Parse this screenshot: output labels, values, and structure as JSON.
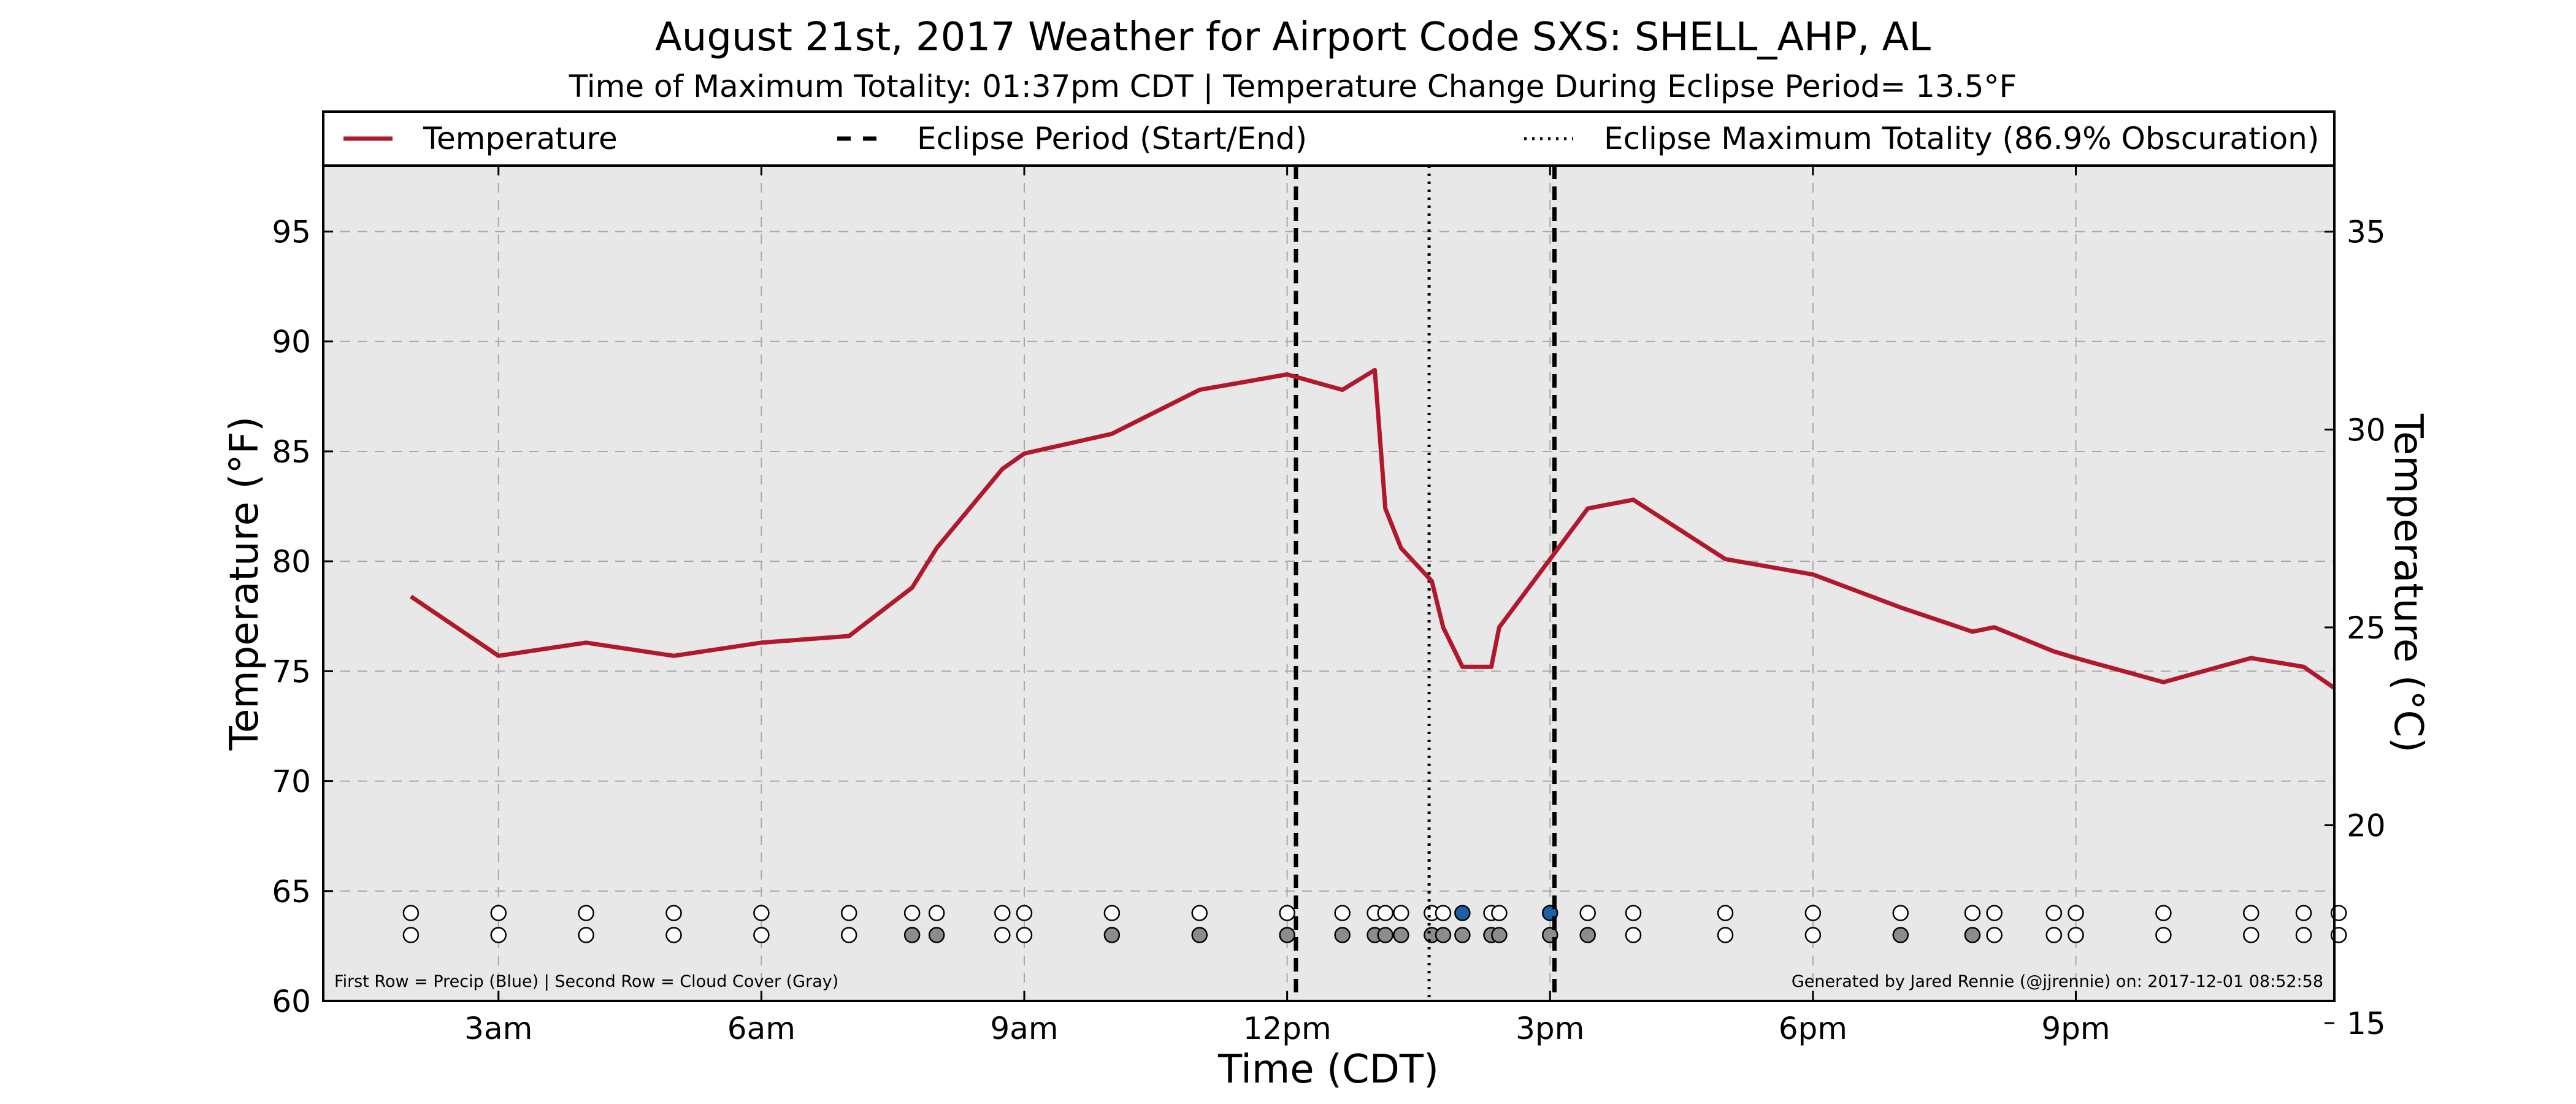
{
  "chart_data": {
    "type": "line",
    "title": "August 21st, 2017 Weather for Airport Code SXS: SHELL_AHP, AL",
    "subtitle": "Time of Maximum Totality: 01:37pm CDT | Temperature Change During Eclipse Period= 13.5°F",
    "xlabel": "Time (CDT)",
    "ylabel_left": "Temperature (°F)",
    "ylabel_right": "Temperature (°C)",
    "xlim": [
      1.0,
      23.95
    ],
    "ylim": [
      60,
      98
    ],
    "ylim_celsius": [
      15.56,
      36.67
    ],
    "grid": true,
    "legend_placement": "top",
    "x_ticks": [
      {
        "x": 3,
        "label": "3am"
      },
      {
        "x": 6,
        "label": "6am"
      },
      {
        "x": 9,
        "label": "9am"
      },
      {
        "x": 12,
        "label": "12pm"
      },
      {
        "x": 15,
        "label": "3pm"
      },
      {
        "x": 18,
        "label": "6pm"
      },
      {
        "x": 21,
        "label": "9pm"
      }
    ],
    "y_ticks": [
      {
        "y": 60,
        "label": "60"
      },
      {
        "y": 65,
        "label": "65"
      },
      {
        "y": 70,
        "label": "70"
      },
      {
        "y": 75,
        "label": "75"
      },
      {
        "y": 80,
        "label": "80"
      },
      {
        "y": 85,
        "label": "85"
      },
      {
        "y": 90,
        "label": "90"
      },
      {
        "y": 95,
        "label": "95"
      }
    ],
    "y_ticks_right": [
      {
        "y": 15,
        "label": "15"
      },
      {
        "y": 20,
        "label": "20"
      },
      {
        "y": 25,
        "label": "25"
      },
      {
        "y": 30,
        "label": "30"
      },
      {
        "y": 35,
        "label": "35"
      }
    ],
    "series": [
      {
        "name": "Temperature",
        "color": "#b2182b",
        "x": [
          2.0,
          3.0,
          4.0,
          5.0,
          6.0,
          7.0,
          7.72,
          8.0,
          8.75,
          9.0,
          10.0,
          11.0,
          12.0,
          12.63,
          13.0,
          13.12,
          13.3,
          13.65,
          13.78,
          14.0,
          14.33,
          14.42,
          15.0,
          15.43,
          15.95,
          17.0,
          18.0,
          19.0,
          19.82,
          20.07,
          20.75,
          21.0,
          22.0,
          23.0,
          23.6,
          24.0
        ],
        "y": [
          78.4,
          75.7,
          76.3,
          75.7,
          76.3,
          76.6,
          78.8,
          80.6,
          84.2,
          84.9,
          85.8,
          87.8,
          88.5,
          87.8,
          88.7,
          82.4,
          80.6,
          79.1,
          77.0,
          75.2,
          75.2,
          77.0,
          80.1,
          82.4,
          82.8,
          80.1,
          79.4,
          77.9,
          76.8,
          77.0,
          75.9,
          75.6,
          74.5,
          75.6,
          75.2,
          74.1
        ]
      }
    ],
    "legend_entries": [
      {
        "label": "Temperature",
        "style": "solid",
        "color": "#b2182b"
      },
      {
        "label": "Eclipse Period (Start/End)",
        "style": "dashed",
        "color": "#000000"
      },
      {
        "label": "Eclipse Maximum Totality (86.9% Obscuration)",
        "style": "dotted",
        "color": "#000000"
      }
    ],
    "eclipse": {
      "start_x": 12.1,
      "end_x": 15.05,
      "max_totality_x": 13.62
    },
    "observations": {
      "precip_row_y": 64,
      "cloud_row_y": 63,
      "precip_color": "#1f5fa8",
      "cloud_color": "#8c8c8c",
      "x": [
        2.0,
        3.0,
        4.0,
        5.0,
        6.0,
        7.0,
        7.72,
        8.0,
        8.75,
        9.0,
        10.0,
        11.0,
        12.0,
        12.63,
        13.0,
        13.12,
        13.3,
        13.65,
        13.78,
        14.0,
        14.33,
        14.42,
        15.0,
        15.43,
        15.95,
        17.0,
        18.0,
        19.0,
        19.82,
        20.07,
        20.75,
        21.0,
        22.0,
        23.0,
        23.6,
        24.0
      ],
      "precip": [
        0,
        0,
        0,
        0,
        0,
        0,
        0,
        0,
        0,
        0,
        0,
        0,
        0,
        0,
        0,
        0,
        0,
        0,
        0,
        1,
        0,
        0,
        1,
        0,
        0,
        0,
        0,
        0,
        0,
        0,
        0,
        0,
        0,
        0,
        0,
        0
      ],
      "cloud": [
        0,
        0,
        0,
        0,
        0,
        0,
        1,
        1,
        0,
        0,
        1,
        1,
        1,
        1,
        1,
        1,
        1,
        1,
        1,
        1,
        1,
        1,
        1,
        1,
        0,
        0,
        0,
        1,
        1,
        0,
        0,
        0,
        0,
        0,
        0,
        0
      ]
    },
    "footnote_left": "First Row = Precip (Blue) | Second Row = Cloud Cover (Gray)",
    "footnote_right": "Generated by Jared Rennie (@jjrennie) on: 2017-12-01 08:52:58"
  }
}
